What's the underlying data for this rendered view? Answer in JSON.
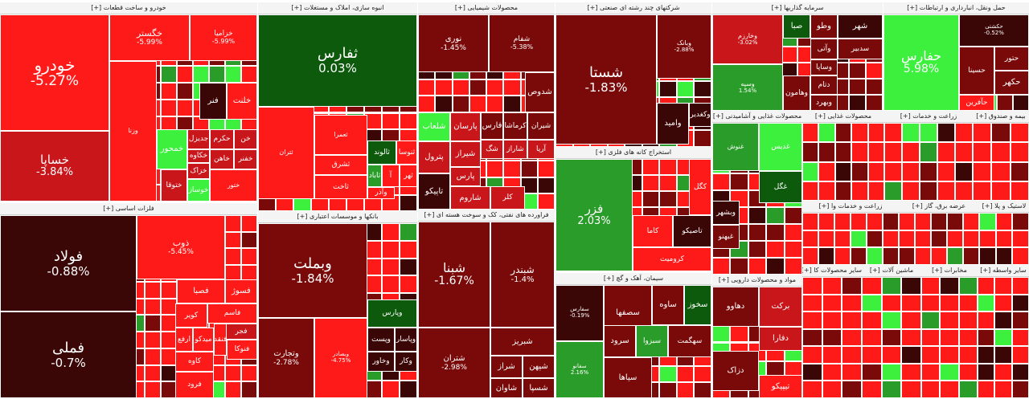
{
  "colors": {
    "neg_dark": "#3b0606",
    "neg_mid": "#7a0a0a",
    "neg": "#c9161b",
    "neg_bright": "#ff1a1a",
    "pos_dark": "#0d5a0d",
    "pos": "#2a9c2a",
    "pos_bright": "#3ef03e"
  },
  "chart_data": {
    "type": "treemap",
    "sectors": [
      {
        "title": "خودرو و ساخت قطعات [+]",
        "tiles": [
          {
            "name": "خودرو",
            "change": "-5.27%"
          },
          {
            "name": "خگستر",
            "change": "-5.99%"
          },
          {
            "name": "خزامیا",
            "change": "-5.99%"
          },
          {
            "name": "خساپا",
            "change": "-3.84%"
          },
          {
            "name": "فنر",
            "change": ""
          },
          {
            "name": "خلنت",
            "change": ""
          },
          {
            "name": "خمحور",
            "change": ""
          },
          {
            "name": "خوساز",
            "change": ""
          },
          {
            "name": "خزاک",
            "change": ""
          },
          {
            "name": "ختوقا",
            "change": ""
          },
          {
            "name": "حکرم",
            "change": ""
          },
          {
            "name": "خن",
            "change": ""
          },
          {
            "name": "جدیزل",
            "change": ""
          },
          {
            "name": "خکاوه",
            "change": ""
          },
          {
            "name": "خاهن",
            "change": ""
          },
          {
            "name": "خفنر",
            "change": ""
          },
          {
            "name": "ختور",
            "change": ""
          },
          {
            "name": "وزنا",
            "change": ""
          }
        ]
      },
      {
        "title": "انبوه سازی، املاک و مستغلات [+]",
        "tiles": [
          {
            "name": "ثفارس",
            "change": "0.03%"
          },
          {
            "name": "ثالوند",
            "change": ""
          },
          {
            "name": "ثنوسا",
            "change": ""
          },
          {
            "name": "ثعمرا",
            "change": ""
          },
          {
            "name": "ثشرق",
            "change": ""
          },
          {
            "name": "ثاخت",
            "change": ""
          },
          {
            "name": "ثاباد",
            "change": ""
          },
          {
            "name": "آ",
            "change": ""
          },
          {
            "name": "ثهر",
            "change": ""
          },
          {
            "name": "وآذر",
            "change": ""
          },
          {
            "name": "ثتران",
            "change": ""
          }
        ]
      },
      {
        "title": "محصولات شیمیایی [+]",
        "tiles": [
          {
            "name": "نوری",
            "change": "-1.45%"
          },
          {
            "name": "شفام",
            "change": "-5.38%"
          },
          {
            "name": "شدوص",
            "change": ""
          },
          {
            "name": "شلعاب",
            "change": ""
          },
          {
            "name": "پارسان",
            "change": ""
          },
          {
            "name": "فارس",
            "change": ""
          },
          {
            "name": "کرماشا",
            "change": ""
          },
          {
            "name": "شیران",
            "change": ""
          },
          {
            "name": "شگ",
            "change": ""
          },
          {
            "name": "شاراز",
            "change": ""
          },
          {
            "name": "شیراز",
            "change": ""
          },
          {
            "name": "آریا",
            "change": ""
          },
          {
            "name": "پترول",
            "change": ""
          },
          {
            "name": "پارس",
            "change": ""
          },
          {
            "name": "تاپیکو",
            "change": ""
          },
          {
            "name": "شاروم",
            "change": ""
          },
          {
            "name": "کلر",
            "change": ""
          }
        ]
      },
      {
        "title": "شرکتهای چند رشته ای صنعتی [+]",
        "tiles": [
          {
            "name": "شستا",
            "change": "-1.83%"
          },
          {
            "name": "وبانک",
            "change": "-2.88%"
          },
          {
            "name": "وامید",
            "change": ""
          },
          {
            "name": "وکغدیر",
            "change": ""
          }
        ]
      },
      {
        "title": "سرمایه گذاریها [+]",
        "tiles": [
          {
            "name": "وخارزم",
            "change": "-3.02%"
          },
          {
            "name": "صبا",
            "change": ""
          },
          {
            "name": "وطو",
            "change": ""
          },
          {
            "name": "شهر",
            "change": ""
          },
          {
            "name": "سدبیر",
            "change": ""
          },
          {
            "name": "وآتی",
            "change": ""
          },
          {
            "name": "وسپه",
            "change": "1.54%"
          },
          {
            "name": "وساپا",
            "change": ""
          },
          {
            "name": "دتام",
            "change": ""
          },
          {
            "name": "وهامون",
            "change": ""
          },
          {
            "name": "وبهرد",
            "change": ""
          }
        ]
      },
      {
        "title": "حمل ونقل، انبارداری و ارتباطات [+]",
        "tiles": [
          {
            "name": "حفارس",
            "change": "5.98%"
          },
          {
            "name": "حکشتی",
            "change": "-0.52%"
          },
          {
            "name": "حتور",
            "change": ""
          },
          {
            "name": "حسینا",
            "change": ""
          },
          {
            "name": "حکهر",
            "change": ""
          },
          {
            "name": "حآفرین",
            "change": ""
          }
        ]
      },
      {
        "title": "فلزات اساسی [+]",
        "tiles": [
          {
            "name": "فولاد",
            "change": "-0.88%"
          },
          {
            "name": "ذوب",
            "change": "-5.45%"
          },
          {
            "name": "فملی",
            "change": "-0.7%"
          },
          {
            "name": "فصبا",
            "change": ""
          },
          {
            "name": "فسوژ",
            "change": ""
          },
          {
            "name": "کویر",
            "change": ""
          },
          {
            "name": "فاسم",
            "change": ""
          },
          {
            "name": "فجر",
            "change": ""
          },
          {
            "name": "فنوکا",
            "change": ""
          },
          {
            "name": "ارفع",
            "change": ""
          },
          {
            "name": "میدکو",
            "change": ""
          },
          {
            "name": "فنقد",
            "change": ""
          },
          {
            "name": "کاوه",
            "change": ""
          },
          {
            "name": "فرود",
            "change": ""
          }
        ]
      },
      {
        "title": "بانکها و موسسات اعتباری [+]",
        "tiles": [
          {
            "name": "وبملت",
            "change": "-1.84%"
          },
          {
            "name": "وتجارت",
            "change": "-2.78%"
          },
          {
            "name": "وپست",
            "change": ""
          },
          {
            "name": "وپاسار",
            "change": ""
          },
          {
            "name": "وکار",
            "change": ""
          },
          {
            "name": "وخاور",
            "change": ""
          },
          {
            "name": "وپارس",
            "change": ""
          },
          {
            "name": "وبصادر",
            "change": "-4.75%"
          }
        ]
      },
      {
        "title": "فراورده های نفتی، کک و سوخت هسته ای [+]",
        "tiles": [
          {
            "name": "شبنا",
            "change": "-1.67%"
          },
          {
            "name": "شبندر",
            "change": "-1.4%"
          },
          {
            "name": "شتران",
            "change": "-2.98%"
          },
          {
            "name": "شبریز",
            "change": ""
          },
          {
            "name": "شپهن",
            "change": ""
          },
          {
            "name": "شراز",
            "change": ""
          },
          {
            "name": "شاوان",
            "change": ""
          },
          {
            "name": "شسپا",
            "change": ""
          }
        ]
      },
      {
        "title": "استخراج کانه های فلزی [+]",
        "tiles": [
          {
            "name": "فزر",
            "change": "2.03%"
          },
          {
            "name": "کاما",
            "change": ""
          },
          {
            "name": "تاصیکو",
            "change": ""
          },
          {
            "name": "کرومیت",
            "change": ""
          },
          {
            "name": "کگل",
            "change": ""
          }
        ]
      },
      {
        "title": "سیمان، آهک و گچ [+]",
        "tiles": [
          {
            "name": "سفارس",
            "change": "-0.19%"
          },
          {
            "name": "سصفها",
            "change": ""
          },
          {
            "name": "ساوه",
            "change": ""
          },
          {
            "name": "سخوز",
            "change": ""
          },
          {
            "name": "سرود",
            "change": ""
          },
          {
            "name": "سبزوا",
            "change": ""
          },
          {
            "name": "سهگمت",
            "change": ""
          },
          {
            "name": "سیاها",
            "change": ""
          },
          {
            "name": "سفانو",
            "change": "2.16%"
          }
        ]
      },
      {
        "title": "مواد و محصولات دارویی [+]",
        "tiles": [
          {
            "name": "برکت",
            "change": ""
          },
          {
            "name": "دهاوو",
            "change": ""
          },
          {
            "name": "دفارا",
            "change": ""
          },
          {
            "name": "دزاک",
            "change": ""
          },
          {
            "name": "تیپیکو",
            "change": ""
          }
        ]
      },
      {
        "title": "محصولات غذایی و آشامیدنی [+]",
        "tiles": [
          {
            "name": "غنوش",
            "change": ""
          },
          {
            "name": "غدیس",
            "change": ""
          },
          {
            "name": "غگل",
            "change": ""
          },
          {
            "name": "وبشهر",
            "change": ""
          },
          {
            "name": "غبهنو",
            "change": ""
          }
        ]
      }
    ]
  }
}
